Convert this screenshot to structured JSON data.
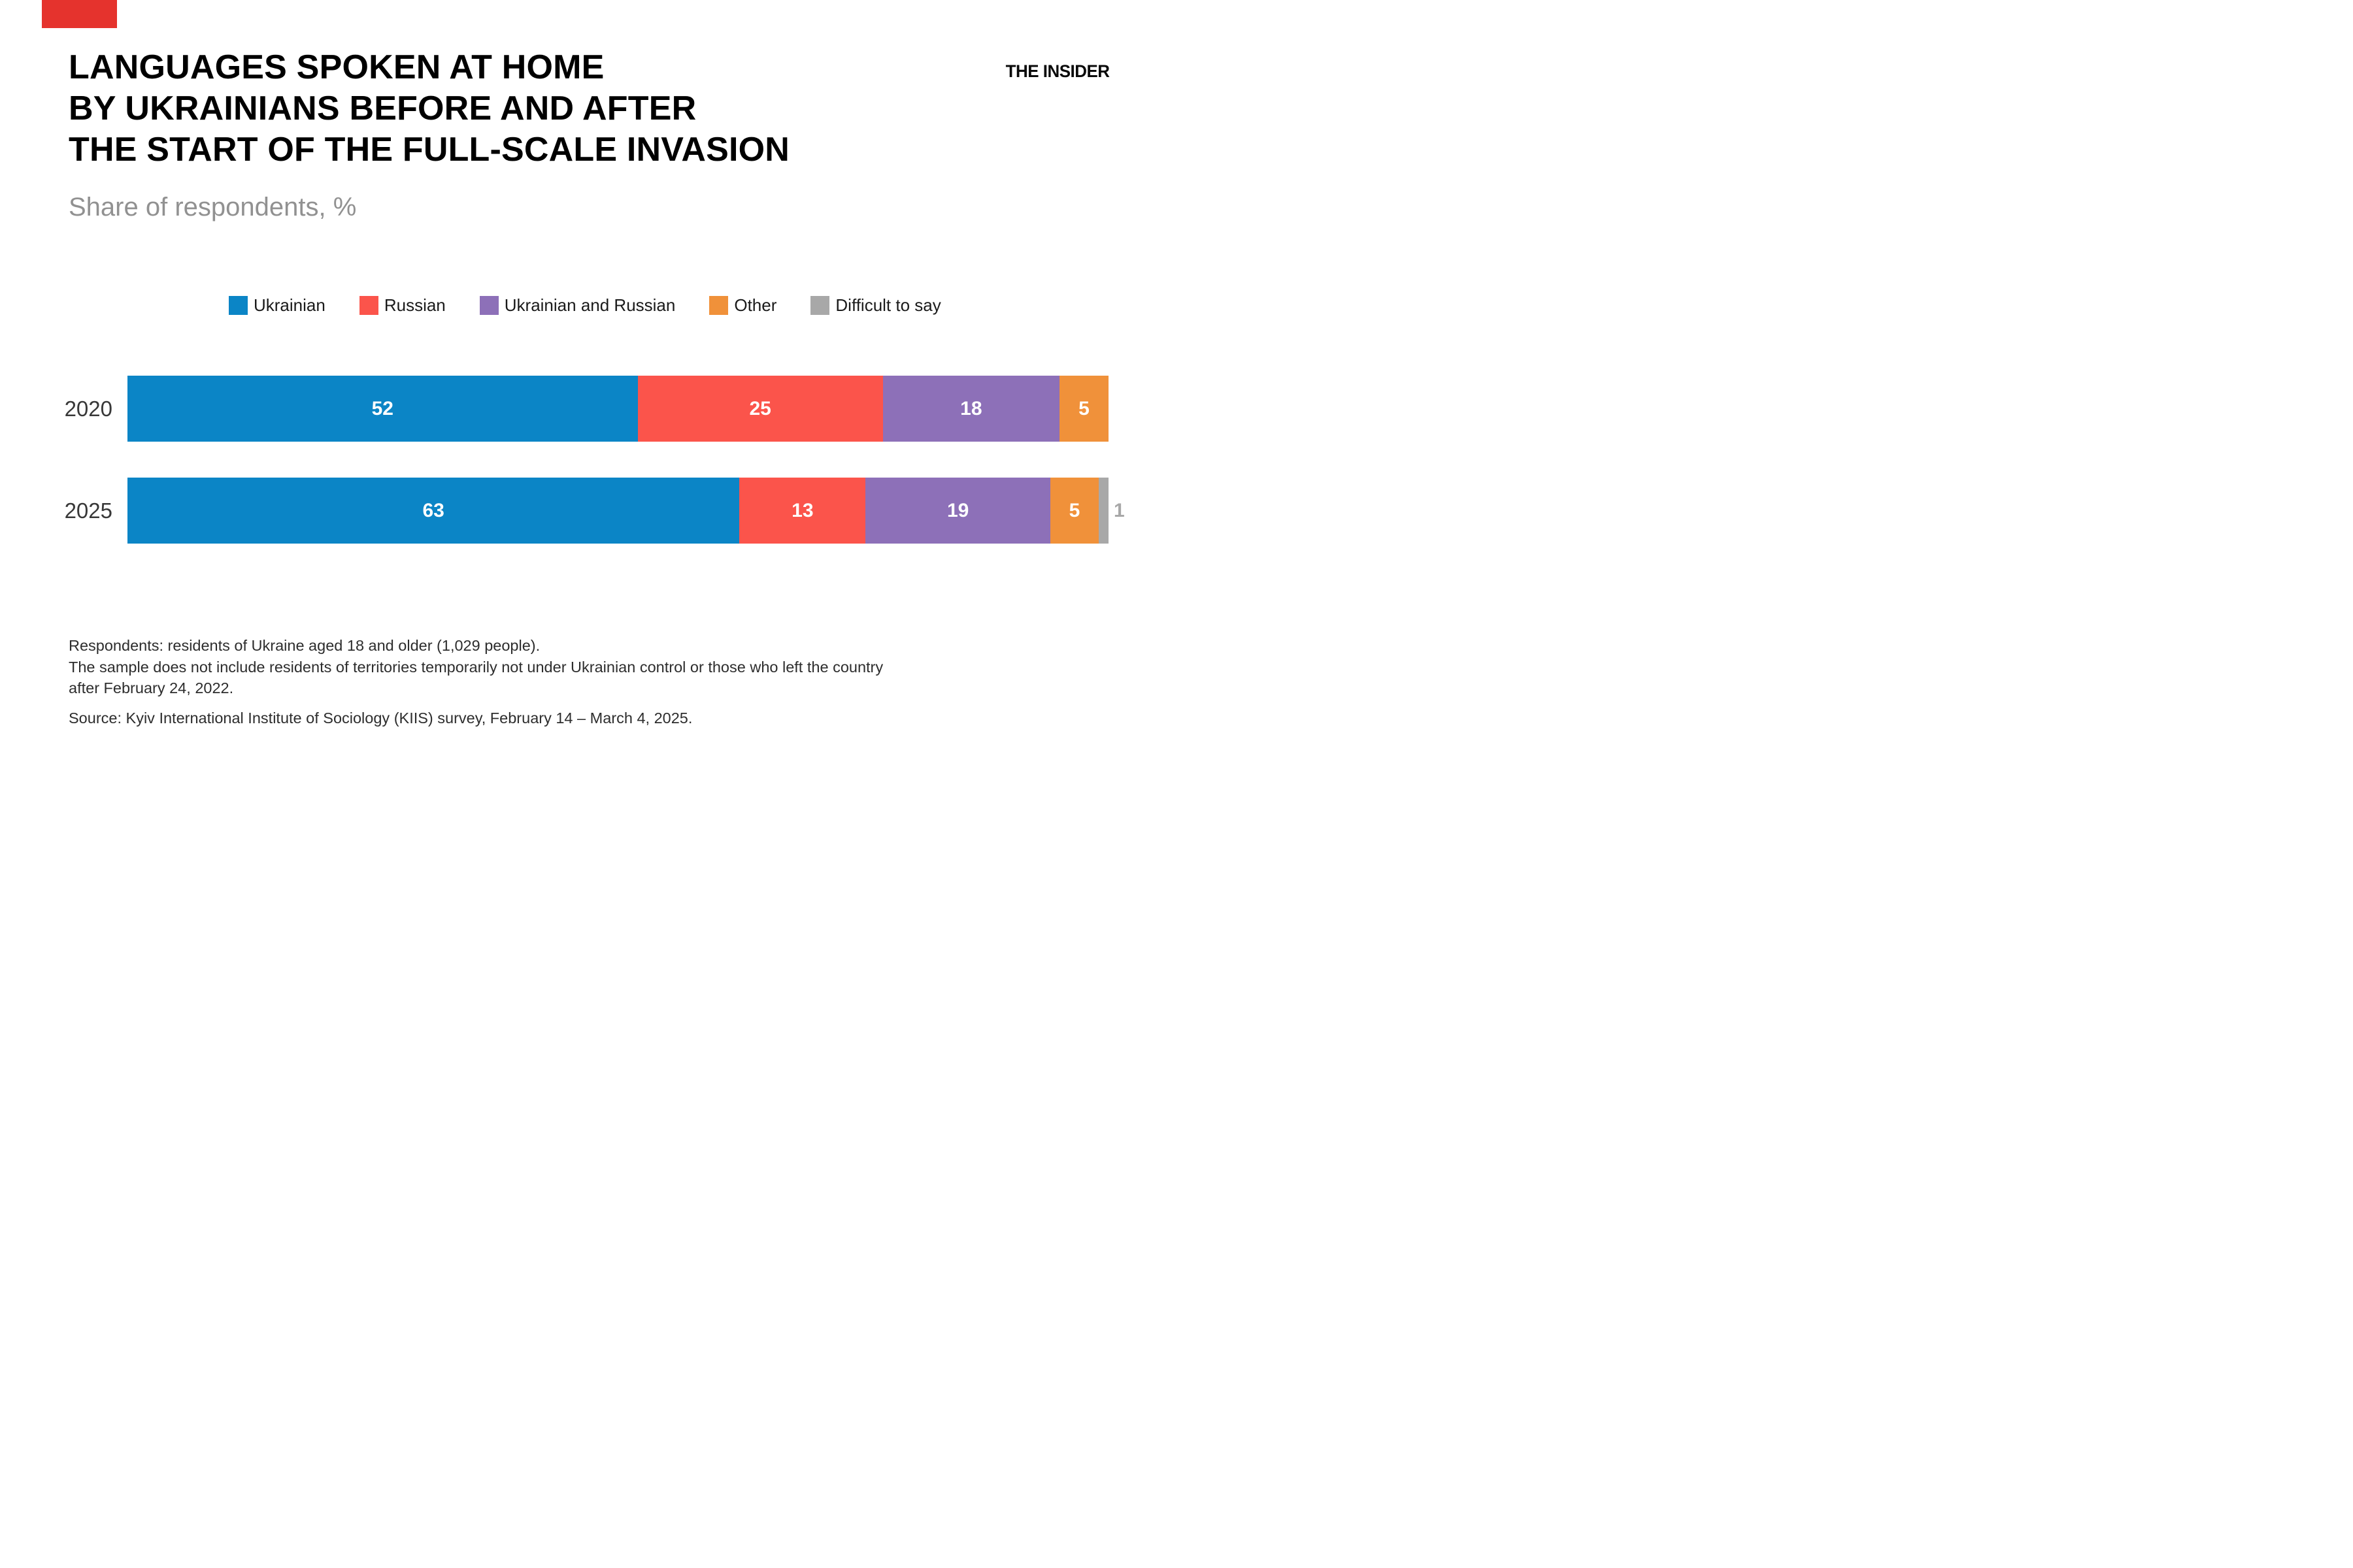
{
  "brand": {
    "accent_color": "#e5332d",
    "logo_text": "THE INSIDER"
  },
  "header": {
    "title_line1": "LANGUAGES SPOKEN AT HOME",
    "title_line2": "BY UKRAINIANS BEFORE AND AFTER",
    "title_line3": "THE START OF THE FULL-SCALE INVASION",
    "subtitle": "Share of respondents, %"
  },
  "chart_data": {
    "type": "bar",
    "stacked": true,
    "orientation": "horizontal",
    "unit": "%",
    "title": "Languages spoken at home by Ukrainians before and after the start of the full-scale invasion",
    "categories": [
      "2020",
      "2025"
    ],
    "series": [
      {
        "name": "Ukrainian",
        "color": "#0b85c6",
        "values": [
          52,
          63
        ]
      },
      {
        "name": "Russian",
        "color": "#fb544b",
        "values": [
          25,
          13
        ]
      },
      {
        "name": "Ukrainian and Russian",
        "color": "#8d70b8",
        "values": [
          18,
          19
        ]
      },
      {
        "name": "Other",
        "color": "#f0913a",
        "values": [
          5,
          5
        ]
      },
      {
        "name": "Difficult to say",
        "color": "#a8a8a8",
        "values": [
          0,
          1
        ]
      }
    ],
    "legend_position": "top",
    "value_label_style": "white bold inside segments; values of 1 or less shown outside bar in gray",
    "axis": "none, bars span 0-100%"
  },
  "footnotes": {
    "line1": "Respondents: residents of Ukraine aged 18 and older (1,029 people).",
    "line2": "The sample does not include residents of territories temporarily not under Ukrainian control or those who left the country",
    "line3": "after February 24, 2022.",
    "source": "Source: Kyiv International Institute of Sociology (KIIS) survey, February 14 – March 4, 2025."
  }
}
